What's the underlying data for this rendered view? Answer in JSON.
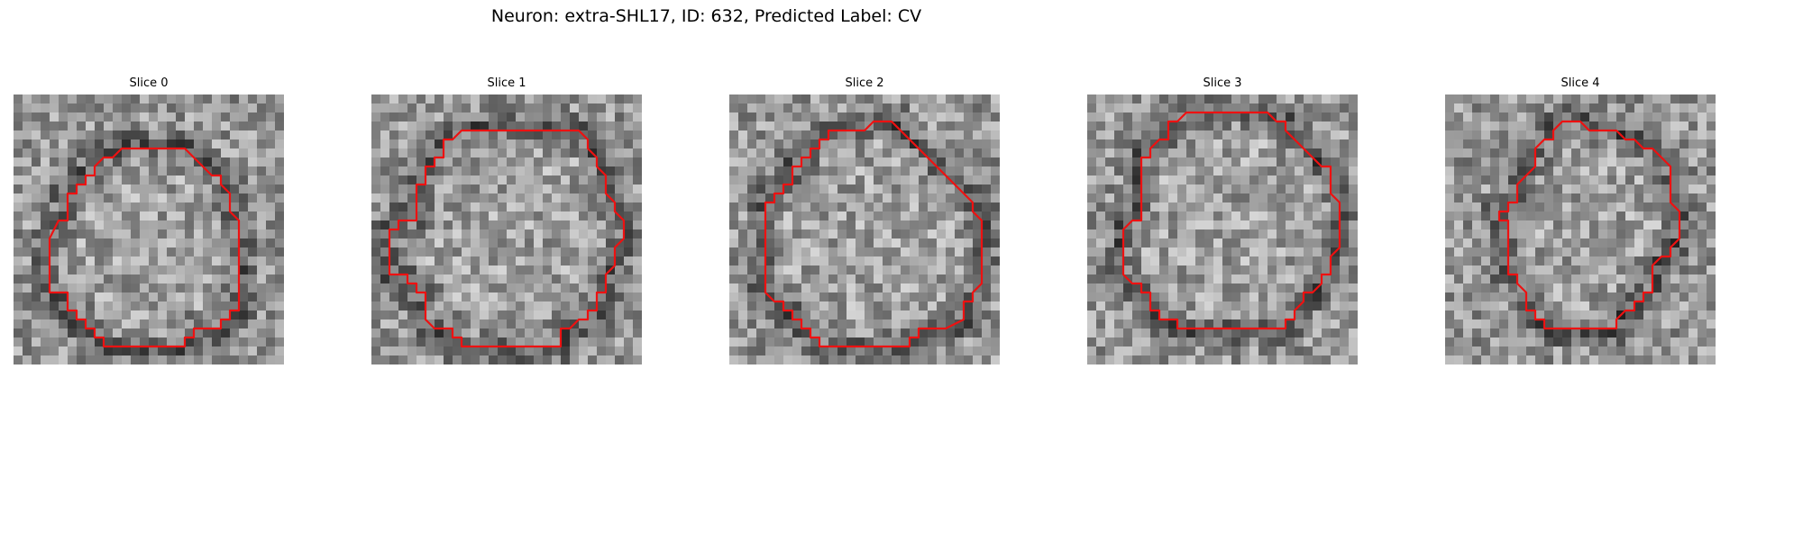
{
  "figure": {
    "title": "Neuron: extra-SHL17, ID: 632, Predicted Label: CV"
  },
  "colors": {
    "contour": "#ee1111",
    "background": "#ffffff"
  },
  "image_grid": 30,
  "panels": [
    {
      "title": "Slice 0",
      "contour": [
        [
          19,
          6
        ],
        [
          22,
          9
        ],
        [
          23,
          9
        ],
        [
          23,
          10
        ],
        [
          24,
          11
        ],
        [
          24,
          13
        ],
        [
          25,
          14
        ],
        [
          25,
          24
        ],
        [
          24,
          24
        ],
        [
          24,
          25
        ],
        [
          23,
          25
        ],
        [
          23,
          26
        ],
        [
          20,
          26
        ],
        [
          20,
          27
        ],
        [
          19,
          27
        ],
        [
          19,
          28
        ],
        [
          10,
          28
        ],
        [
          10,
          27
        ],
        [
          9,
          27
        ],
        [
          9,
          26
        ],
        [
          8,
          26
        ],
        [
          8,
          25
        ],
        [
          7,
          25
        ],
        [
          7,
          24
        ],
        [
          6,
          24
        ],
        [
          6,
          22
        ],
        [
          4,
          22
        ],
        [
          4,
          16
        ],
        [
          5,
          14
        ],
        [
          6,
          14
        ],
        [
          6,
          11
        ],
        [
          7,
          11
        ],
        [
          7,
          10
        ],
        [
          8,
          10
        ],
        [
          8,
          9
        ],
        [
          9,
          9
        ],
        [
          9,
          8
        ],
        [
          10,
          7
        ],
        [
          11,
          7
        ],
        [
          12,
          6
        ]
      ]
    },
    {
      "title": "Slice 1",
      "contour": [
        [
          10,
          4
        ],
        [
          23,
          4
        ],
        [
          24,
          5
        ],
        [
          24,
          6
        ],
        [
          25,
          7
        ],
        [
          25,
          8
        ],
        [
          26,
          9
        ],
        [
          26,
          11
        ],
        [
          27,
          12
        ],
        [
          27,
          13
        ],
        [
          28,
          14
        ],
        [
          28,
          16
        ],
        [
          27,
          17
        ],
        [
          27,
          19
        ],
        [
          26,
          20
        ],
        [
          26,
          22
        ],
        [
          25,
          22
        ],
        [
          25,
          24
        ],
        [
          24,
          24
        ],
        [
          24,
          25
        ],
        [
          23,
          25
        ],
        [
          22,
          26
        ],
        [
          21,
          26
        ],
        [
          21,
          28
        ],
        [
          10,
          28
        ],
        [
          10,
          27
        ],
        [
          9,
          27
        ],
        [
          9,
          26
        ],
        [
          7,
          26
        ],
        [
          6,
          25
        ],
        [
          6,
          22
        ],
        [
          5,
          22
        ],
        [
          5,
          21
        ],
        [
          4,
          21
        ],
        [
          4,
          20
        ],
        [
          2,
          20
        ],
        [
          2,
          15
        ],
        [
          3,
          15
        ],
        [
          3,
          14
        ],
        [
          5,
          14
        ],
        [
          5,
          10
        ],
        [
          6,
          10
        ],
        [
          6,
          8
        ],
        [
          7,
          8
        ],
        [
          7,
          7
        ],
        [
          8,
          7
        ],
        [
          8,
          5
        ],
        [
          9,
          5
        ]
      ]
    },
    {
      "title": "Slice 2",
      "contour": [
        [
          16,
          3
        ],
        [
          18,
          3
        ],
        [
          19,
          4
        ],
        [
          20,
          5
        ],
        [
          21,
          6
        ],
        [
          22,
          7
        ],
        [
          23,
          8
        ],
        [
          24,
          9
        ],
        [
          25,
          10
        ],
        [
          26,
          11
        ],
        [
          27,
          12
        ],
        [
          27,
          13
        ],
        [
          28,
          14
        ],
        [
          28,
          21
        ],
        [
          27,
          22
        ],
        [
          27,
          23
        ],
        [
          26,
          23
        ],
        [
          26,
          25
        ],
        [
          24,
          26
        ],
        [
          21,
          26
        ],
        [
          21,
          27
        ],
        [
          20,
          27
        ],
        [
          20,
          28
        ],
        [
          10,
          28
        ],
        [
          10,
          27
        ],
        [
          9,
          27
        ],
        [
          9,
          26
        ],
        [
          8,
          26
        ],
        [
          8,
          25
        ],
        [
          7,
          25
        ],
        [
          7,
          24
        ],
        [
          6,
          24
        ],
        [
          6,
          23
        ],
        [
          5,
          23
        ],
        [
          4,
          22
        ],
        [
          4,
          12
        ],
        [
          5,
          12
        ],
        [
          5,
          11
        ],
        [
          6,
          11
        ],
        [
          6,
          10
        ],
        [
          7,
          10
        ],
        [
          7,
          8
        ],
        [
          8,
          8
        ],
        [
          8,
          7
        ],
        [
          9,
          7
        ],
        [
          9,
          6
        ],
        [
          10,
          6
        ],
        [
          10,
          5
        ],
        [
          11,
          5
        ],
        [
          11,
          4
        ],
        [
          15,
          4
        ]
      ]
    },
    {
      "title": "Slice 3",
      "contour": [
        [
          12,
          2
        ],
        [
          20,
          2
        ],
        [
          21,
          3
        ],
        [
          22,
          3
        ],
        [
          22,
          4
        ],
        [
          23,
          5
        ],
        [
          24,
          6
        ],
        [
          25,
          7
        ],
        [
          26,
          8
        ],
        [
          27,
          8
        ],
        [
          27,
          11
        ],
        [
          28,
          12
        ],
        [
          28,
          17
        ],
        [
          27,
          18
        ],
        [
          27,
          20
        ],
        [
          26,
          20
        ],
        [
          26,
          21
        ],
        [
          25,
          22
        ],
        [
          24,
          22
        ],
        [
          24,
          23
        ],
        [
          23,
          24
        ],
        [
          23,
          25
        ],
        [
          22,
          25
        ],
        [
          22,
          26
        ],
        [
          10,
          26
        ],
        [
          10,
          25
        ],
        [
          9,
          25
        ],
        [
          8,
          25
        ],
        [
          8,
          24
        ],
        [
          7,
          24
        ],
        [
          7,
          22
        ],
        [
          6,
          22
        ],
        [
          6,
          21
        ],
        [
          5,
          21
        ],
        [
          4,
          20
        ],
        [
          4,
          18
        ],
        [
          4,
          15
        ],
        [
          5,
          14
        ],
        [
          6,
          14
        ],
        [
          6,
          7
        ],
        [
          7,
          7
        ],
        [
          7,
          6
        ],
        [
          8,
          5
        ],
        [
          9,
          5
        ],
        [
          9,
          3
        ],
        [
          10,
          3
        ],
        [
          11,
          2
        ]
      ]
    },
    {
      "title": "Slice 4",
      "contour": [
        [
          13,
          3
        ],
        [
          15,
          3
        ],
        [
          16,
          4
        ],
        [
          19,
          4
        ],
        [
          20,
          5
        ],
        [
          21,
          5
        ],
        [
          22,
          6
        ],
        [
          23,
          6
        ],
        [
          24,
          7
        ],
        [
          25,
          8
        ],
        [
          25,
          12
        ],
        [
          26,
          13
        ],
        [
          26,
          16
        ],
        [
          25,
          17
        ],
        [
          25,
          18
        ],
        [
          24,
          18
        ],
        [
          23,
          19
        ],
        [
          23,
          22
        ],
        [
          22,
          22
        ],
        [
          22,
          23
        ],
        [
          21,
          23
        ],
        [
          21,
          24
        ],
        [
          20,
          24
        ],
        [
          19,
          25
        ],
        [
          19,
          26
        ],
        [
          11,
          26
        ],
        [
          11,
          25
        ],
        [
          10,
          25
        ],
        [
          10,
          24
        ],
        [
          9,
          24
        ],
        [
          9,
          22
        ],
        [
          8,
          21
        ],
        [
          8,
          20
        ],
        [
          7,
          20
        ],
        [
          7,
          14
        ],
        [
          6,
          14
        ],
        [
          6,
          13
        ],
        [
          7,
          13
        ],
        [
          7,
          12
        ],
        [
          8,
          12
        ],
        [
          8,
          10
        ],
        [
          9,
          9
        ],
        [
          10,
          8
        ],
        [
          10,
          6
        ],
        [
          11,
          5
        ],
        [
          12,
          5
        ],
        [
          12,
          4
        ]
      ]
    }
  ]
}
